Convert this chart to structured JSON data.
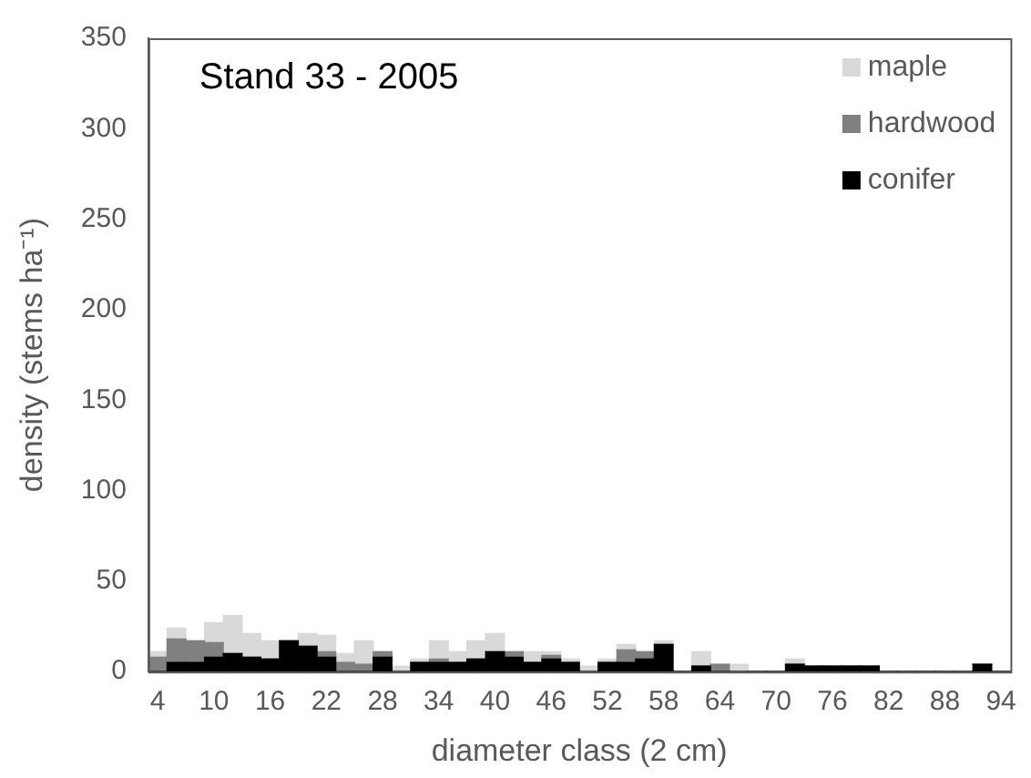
{
  "chart_data": {
    "type": "bar",
    "stacked": true,
    "title": "Stand 33 - 2005",
    "xlabel": "diameter class (2 cm)",
    "ylabel": "density (stems ha⁻¹)",
    "categories": [
      "4",
      null,
      null,
      "10",
      null,
      null,
      "16",
      null,
      null,
      "22",
      null,
      null,
      "28",
      null,
      null,
      "34",
      null,
      null,
      "40",
      null,
      null,
      "46",
      null,
      null,
      "52",
      null,
      null,
      "58",
      null,
      null,
      "64",
      null,
      null,
      "70",
      null,
      null,
      "76",
      null,
      null,
      "82",
      null,
      null,
      "88",
      null,
      null,
      "94"
    ],
    "series": [
      {
        "name": "conifer",
        "color": "#000000",
        "values": [
          0,
          5,
          5,
          8,
          10,
          8,
          7,
          17,
          14,
          8,
          0,
          0,
          8,
          0,
          5,
          5,
          5,
          7,
          11,
          8,
          5,
          7,
          5,
          0,
          5,
          5,
          7,
          15,
          0,
          3,
          0,
          0,
          0,
          0,
          4,
          3,
          3,
          3,
          3,
          0,
          0,
          0,
          0,
          0,
          4,
          0
        ]
      },
      {
        "name": "hardwood",
        "color": "#808080",
        "values": [
          8,
          13,
          12,
          8,
          0,
          0,
          0,
          0,
          0,
          3,
          5,
          4,
          3,
          0,
          0,
          2,
          0,
          0,
          0,
          3,
          0,
          2,
          0,
          0,
          0,
          7,
          4,
          0,
          0,
          0,
          4,
          0,
          0,
          0,
          0,
          0,
          0,
          0,
          0,
          0,
          0,
          0,
          0,
          0,
          0,
          0
        ]
      },
      {
        "name": "maple",
        "color": "#d9d9d9",
        "values": [
          3,
          6,
          0,
          11,
          21,
          13,
          10,
          0,
          7,
          9,
          5,
          13,
          0,
          3,
          2,
          10,
          6,
          10,
          10,
          0,
          6,
          2,
          2,
          3,
          2,
          3,
          0,
          2,
          0,
          8,
          0,
          4,
          0,
          0,
          3,
          0,
          0,
          0,
          0,
          0,
          0,
          0,
          0,
          0,
          0,
          0
        ]
      }
    ],
    "ylim": [
      0,
      350
    ],
    "yticks": [
      0,
      50,
      100,
      150,
      200,
      250,
      300,
      350
    ],
    "grid": false,
    "legend": "top right"
  }
}
